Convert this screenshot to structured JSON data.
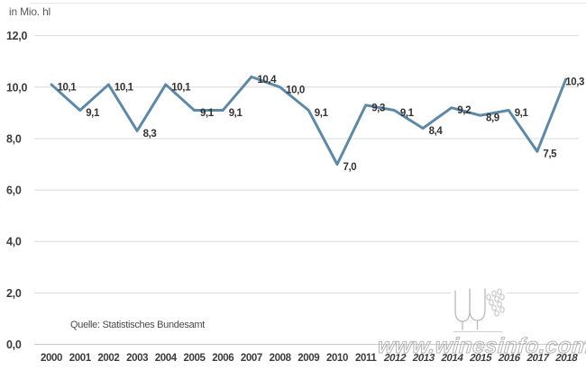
{
  "chart_data": {
    "type": "line",
    "unit_label": "in Mio. hl",
    "x": [
      "2000",
      "2001",
      "2002",
      "2003",
      "2004",
      "2005",
      "2006",
      "2007",
      "2008",
      "2009",
      "2010",
      "2011",
      "2012",
      "2013",
      "2014",
      "2015",
      "2016",
      "2017",
      "2018"
    ],
    "values": [
      10.1,
      9.1,
      10.1,
      8.3,
      10.1,
      9.1,
      9.1,
      10.4,
      10.0,
      9.1,
      7.0,
      9.3,
      9.1,
      8.4,
      9.2,
      8.9,
      9.1,
      7.5,
      10.3
    ],
    "point_labels": [
      "10,1",
      "9,1",
      "10,1",
      "8,3",
      "10,1",
      "9,1",
      "9,1",
      "10,4",
      "10,0",
      "9,1",
      "7,0",
      "9,3",
      "9,1",
      "8,4",
      "9,2",
      "8,9",
      "9,1",
      "7,5",
      "10,3"
    ],
    "ylim": [
      0,
      12
    ],
    "yticks": [
      0,
      2,
      4,
      6,
      8,
      10,
      12
    ],
    "ytick_labels": [
      "0,0",
      "2,0",
      "4,0",
      "6,0",
      "8,0",
      "10,0",
      "12,0"
    ],
    "grid": true,
    "legend": false,
    "colors": {
      "line": "#5d89a8",
      "grid": "#d9d9d9",
      "axis": "#c9c9c9",
      "tick_text": "#3c3c3c",
      "point_label_text": "#333333"
    },
    "source": "Quelle: Statistisches Bundesamt",
    "watermark": "www.winesinfo.com"
  }
}
